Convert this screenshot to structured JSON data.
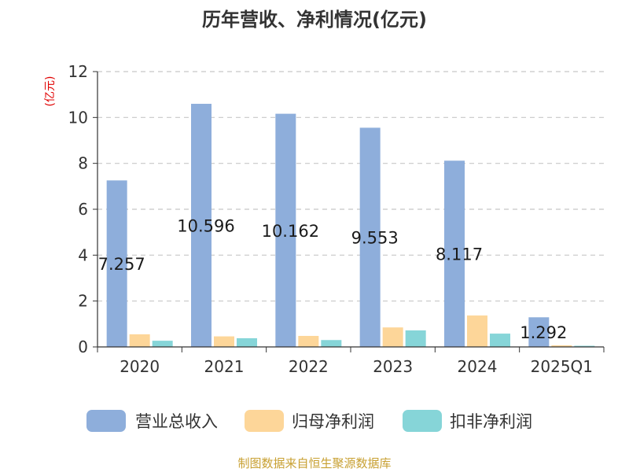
{
  "colors": {
    "revenue": "#8eaedb",
    "net_profit": "#fdd699",
    "deducted_profit": "#86d5d8",
    "grid": "#c8c8c8",
    "axis": "#333333",
    "unit": "#e00000",
    "source": "#c8a032"
  },
  "source_text": "制图数据来自恒生聚源数据库",
  "chart_data": {
    "type": "bar",
    "title": "历年营收、净利情况(亿元)",
    "ylabel": "(亿元)",
    "xlabel": "",
    "categories": [
      "2020",
      "2021",
      "2022",
      "2023",
      "2024",
      "2025Q1"
    ],
    "ylim": [
      0,
      12
    ],
    "yticks": [
      0,
      2,
      4,
      6,
      8,
      10,
      12
    ],
    "grid": true,
    "legend_position": "bottom",
    "series": [
      {
        "name": "营业总收入",
        "values": [
          7.257,
          10.596,
          10.162,
          9.553,
          8.117,
          1.292
        ],
        "data_labels": [
          "7.257",
          "10.596",
          "10.162",
          "9.553",
          "8.117",
          "1.292"
        ]
      },
      {
        "name": "归母净利润",
        "values": [
          0.55,
          0.46,
          0.48,
          0.85,
          1.37,
          0.07
        ]
      },
      {
        "name": "扣非净利润",
        "values": [
          0.27,
          0.38,
          0.3,
          0.72,
          0.58,
          0.05
        ]
      }
    ]
  }
}
